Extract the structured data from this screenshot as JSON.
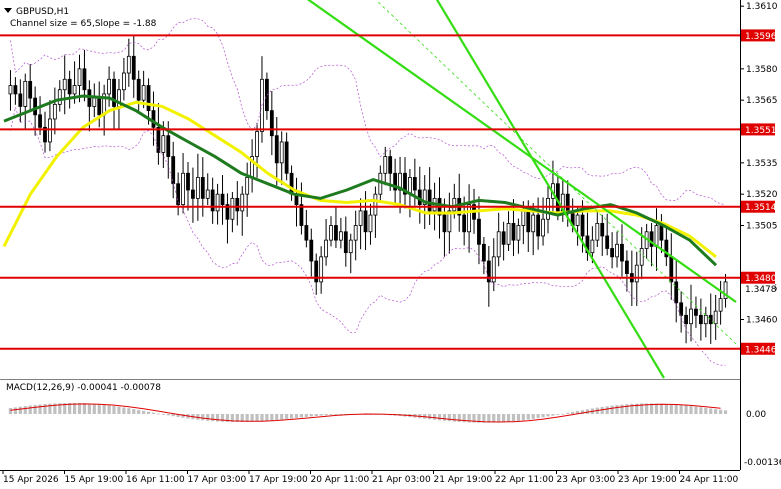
{
  "header": {
    "symbol": "GBPUSD,H1",
    "channel_info": "Channel size = 65,Slope = -1.88",
    "dropdown_icon": "triangle-down-icon"
  },
  "macd_header": "MACD(12,26,9) -0.00041 -0.00078",
  "colors": {
    "background": "#ffffff",
    "bull_candle": "#000000",
    "bear_candle": "#000000",
    "level_line": "#e00000",
    "level_label_bg": "#e00000",
    "channel": "#33dd11",
    "channel_mid": "#33dd11",
    "ma_fast": "#1e7a1e",
    "ma_slow": "#f2f200",
    "bollinger": "#b050d0",
    "macd_hist": "#c0c0c0",
    "macd_signal": "#e00000",
    "axis": "#000000",
    "separator": "#808080"
  },
  "chart_data": {
    "type": "line",
    "title": "GBPUSD,H1",
    "timeframe": "H1",
    "y_axis": {
      "min": 1.3432,
      "max": 1.3612,
      "ticks": [
        1.361,
        1.358,
        1.3565,
        1.3535,
        1.352,
        1.3505,
        1.3475,
        1.346,
        1.3446
      ]
    },
    "price_levels": [
      1.3596,
      1.3551,
      1.3514,
      1.348,
      1.3446
    ],
    "current_price": 1.3478,
    "x_tick_labels": [
      "15 Apr 2026",
      "15 Apr 19:00",
      "16 Apr 11:00",
      "17 Apr 03:00",
      "17 Apr 19:00",
      "20 Apr 11:00",
      "21 Apr 03:00",
      "21 Apr 19:00",
      "22 Apr 11:00",
      "23 Apr 03:00",
      "23 Apr 19:00",
      "24 Apr 11:00"
    ],
    "candles_close": [
      1.3572,
      1.3568,
      1.3562,
      1.3574,
      1.3566,
      1.3558,
      1.3552,
      1.3545,
      1.3556,
      1.3563,
      1.357,
      1.3575,
      1.3568,
      1.3572,
      1.358,
      1.357,
      1.3562,
      1.3566,
      1.3558,
      1.3568,
      1.3575,
      1.3562,
      1.357,
      1.3578,
      1.3586,
      1.3575,
      1.3565,
      1.3572,
      1.356,
      1.3552,
      1.354,
      1.3548,
      1.3538,
      1.3525,
      1.3515,
      1.353,
      1.3522,
      1.3518,
      1.3528,
      1.3518,
      1.3522,
      1.3512,
      1.352,
      1.3515,
      1.3508,
      1.3518,
      1.3512,
      1.352,
      1.3528,
      1.3538,
      1.355,
      1.3575,
      1.356,
      1.3548,
      1.3535,
      1.3545,
      1.353,
      1.352,
      1.3515,
      1.3505,
      1.3498,
      1.3488,
      1.3478,
      1.349,
      1.3498,
      1.3505,
      1.3498,
      1.3502,
      1.3492,
      1.3498,
      1.3505,
      1.3512,
      1.3502,
      1.351,
      1.352,
      1.353,
      1.3538,
      1.353,
      1.3522,
      1.353,
      1.352,
      1.3528,
      1.3522,
      1.3515,
      1.3522,
      1.3512,
      1.3518,
      1.351,
      1.3502,
      1.3512,
      1.3518,
      1.351,
      1.3502,
      1.3515,
      1.3508,
      1.3496,
      1.3488,
      1.3478,
      1.349,
      1.3502,
      1.3496,
      1.3506,
      1.3498,
      1.3505,
      1.3512,
      1.3502,
      1.351,
      1.35,
      1.3508,
      1.3518,
      1.3525,
      1.3512,
      1.352,
      1.3512,
      1.3505,
      1.351,
      1.35,
      1.3492,
      1.3498,
      1.3506,
      1.35,
      1.3494,
      1.349,
      1.3496,
      1.3488,
      1.3482,
      1.3478,
      1.3486,
      1.3494,
      1.3502,
      1.3495,
      1.3505,
      1.3498,
      1.349,
      1.3478,
      1.3468,
      1.3462,
      1.3458,
      1.3465,
      1.3462,
      1.3458,
      1.3462,
      1.3458,
      1.3464,
      1.347,
      1.3478
    ],
    "ma_fast_values": [
      1.3555,
      1.356,
      1.3565,
      1.3567,
      1.3566,
      1.356,
      1.3552,
      1.3545,
      1.3538,
      1.353,
      1.3525,
      1.352,
      1.3518,
      1.3522,
      1.3527,
      1.3523,
      1.3516,
      1.3514,
      1.3517,
      1.3516,
      1.3513,
      1.351,
      1.3513,
      1.3515,
      1.3511,
      1.3505,
      1.3498,
      1.3486
    ],
    "ma_slow_values": [
      1.3495,
      1.352,
      1.3538,
      1.3552,
      1.356,
      1.3564,
      1.3562,
      1.3556,
      1.3548,
      1.354,
      1.353,
      1.3522,
      1.3517,
      1.3516,
      1.3517,
      1.3515,
      1.3511,
      1.3511,
      1.3512,
      1.3513,
      1.3512,
      1.3511,
      1.3512,
      1.3512,
      1.351,
      1.3506,
      1.35,
      1.349
    ],
    "macd": {
      "name": "MACD(12,26,9)",
      "main": -0.00041,
      "signal": -0.00078,
      "ticks": [
        "0.00",
        "-0.00136"
      ]
    }
  }
}
